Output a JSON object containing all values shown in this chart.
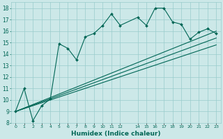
{
  "xlabel": "Humidex (Indice chaleur)",
  "xlim": [
    -0.5,
    23.5
  ],
  "ylim": [
    8,
    18.5
  ],
  "yticks": [
    8,
    9,
    10,
    11,
    12,
    13,
    14,
    15,
    16,
    17,
    18
  ],
  "xtick_positions": [
    0,
    1,
    2,
    3,
    4,
    5,
    6,
    7,
    8,
    9,
    10,
    11,
    12,
    14,
    15,
    16,
    17,
    18,
    19,
    20,
    21,
    22,
    23
  ],
  "xtick_labels": [
    "0",
    "1",
    "2",
    "3",
    "4",
    "5",
    "6",
    "7",
    "8",
    "9",
    "10",
    "11",
    "12",
    "14",
    "15",
    "16",
    "17",
    "18",
    "19",
    "20",
    "21",
    "22",
    "23"
  ],
  "bg_color": "#cce8e8",
  "grid_color": "#99cccc",
  "line_color": "#006655",
  "main_x": [
    0,
    1,
    2,
    3,
    4,
    5,
    6,
    7,
    8,
    9,
    10,
    11,
    12,
    14,
    15,
    16,
    17,
    18,
    19,
    20,
    21,
    22,
    23
  ],
  "main_y": [
    9.0,
    11.0,
    8.2,
    9.5,
    10.1,
    14.9,
    14.5,
    13.5,
    15.5,
    15.8,
    16.5,
    17.5,
    16.5,
    17.2,
    16.5,
    18.0,
    18.0,
    16.8,
    16.6,
    15.3,
    15.9,
    16.2,
    15.8
  ],
  "trend1_x": [
    0,
    23
  ],
  "trend1_y": [
    9.0,
    16.0
  ],
  "trend2_x": [
    0,
    23
  ],
  "trend2_y": [
    9.0,
    15.4
  ],
  "trend3_x": [
    0,
    23
  ],
  "trend3_y": [
    9.0,
    14.8
  ]
}
